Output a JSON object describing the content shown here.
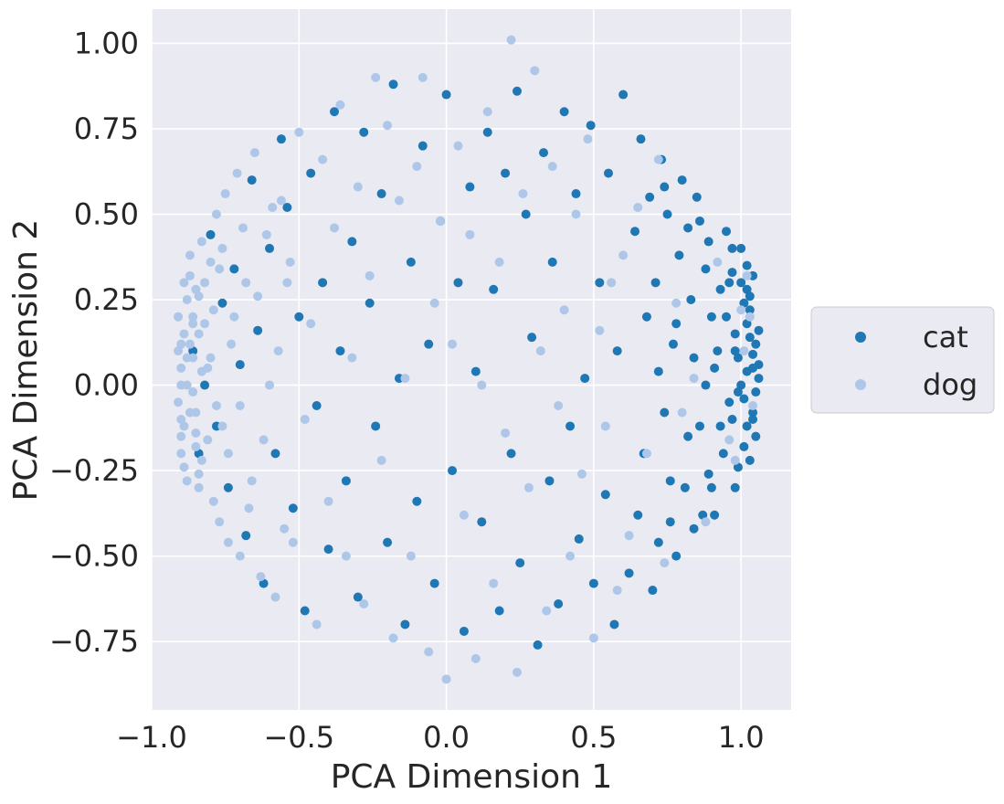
{
  "chart_data": {
    "type": "scatter",
    "title": "",
    "xlabel": "PCA Dimension 1",
    "ylabel": "PCA Dimension 2",
    "xlim": [
      -1.0,
      1.17
    ],
    "ylim": [
      -0.95,
      1.1
    ],
    "xticks": [
      -1.0,
      -0.5,
      0.0,
      0.5,
      1.0
    ],
    "xtick_labels": [
      "−1.0",
      "−0.5",
      "0.0",
      "0.5",
      "1.0"
    ],
    "yticks": [
      -0.75,
      -0.5,
      -0.25,
      0.0,
      0.25,
      0.5,
      0.75,
      1.0
    ],
    "ytick_labels": [
      "−0.75",
      "−0.50",
      "−0.25",
      "0.00",
      "0.25",
      "0.50",
      "0.75",
      "1.00"
    ],
    "grid": true,
    "legend_position": "center-right-outside",
    "series": [
      {
        "name": "cat",
        "color": "#1f77b4",
        "points": [
          [
            1.02,
            0.18
          ],
          [
            1.04,
            0.05
          ],
          [
            1.01,
            -0.04
          ],
          [
            1.03,
            0.26
          ],
          [
            1.05,
            0.12
          ],
          [
            1.02,
            -0.12
          ],
          [
            1.0,
            0.3
          ],
          [
            1.04,
            -0.08
          ],
          [
            1.06,
            0.02
          ],
          [
            0.99,
            0.08
          ],
          [
            1.03,
            0.22
          ],
          [
            1.01,
            -0.18
          ],
          [
            1.05,
            -0.02
          ],
          [
            0.98,
            0.15
          ],
          [
            1.02,
            0.35
          ],
          [
            1.04,
            0.09
          ],
          [
            0.97,
            -0.1
          ],
          [
            1.03,
            -0.22
          ],
          [
            1.06,
            0.16
          ],
          [
            1.0,
            0.0
          ],
          [
            0.95,
            0.2
          ],
          [
            0.96,
            -0.05
          ],
          [
            0.93,
            0.28
          ],
          [
            0.94,
            -0.2
          ],
          [
            0.92,
            0.1
          ],
          [
            0.97,
            0.4
          ],
          [
            0.9,
            -0.3
          ],
          [
            0.95,
            0.45
          ],
          [
            0.91,
            0.05
          ],
          [
            0.93,
            -0.12
          ],
          [
            0.88,
            0.34
          ],
          [
            0.89,
            -0.26
          ],
          [
            0.86,
            0.48
          ],
          [
            0.87,
            -0.38
          ],
          [
            0.9,
            0.2
          ],
          [
            0.85,
            0.55
          ],
          [
            0.84,
            -0.42
          ],
          [
            0.88,
            0.0
          ],
          [
            0.83,
            0.25
          ],
          [
            0.82,
            -0.15
          ],
          [
            0.8,
            0.6
          ],
          [
            0.78,
            -0.5
          ],
          [
            0.79,
            0.38
          ],
          [
            0.77,
            0.12
          ],
          [
            0.76,
            -0.28
          ],
          [
            0.75,
            0.5
          ],
          [
            0.74,
            -0.08
          ],
          [
            0.73,
            0.66
          ],
          [
            0.72,
            -0.46
          ],
          [
            0.71,
            0.3
          ],
          [
            0.7,
            -0.6
          ],
          [
            0.69,
            0.55
          ],
          [
            0.68,
            0.2
          ],
          [
            0.67,
            -0.2
          ],
          [
            0.66,
            0.72
          ],
          [
            0.65,
            -0.38
          ],
          [
            0.64,
            0.45
          ],
          [
            0.62,
            -0.55
          ],
          [
            0.6,
            0.85
          ],
          [
            0.58,
            0.1
          ],
          [
            0.57,
            -0.7
          ],
          [
            0.55,
            0.62
          ],
          [
            0.54,
            -0.32
          ],
          [
            0.52,
            0.3
          ],
          [
            0.5,
            -0.58
          ],
          [
            0.49,
            0.76
          ],
          [
            0.47,
            0.02
          ],
          [
            0.45,
            -0.45
          ],
          [
            0.44,
            0.56
          ],
          [
            0.42,
            -0.12
          ],
          [
            0.4,
            0.8
          ],
          [
            0.38,
            -0.64
          ],
          [
            0.36,
            0.36
          ],
          [
            0.35,
            -0.28
          ],
          [
            0.33,
            0.68
          ],
          [
            0.31,
            -0.76
          ],
          [
            0.29,
            0.14
          ],
          [
            0.27,
            0.5
          ],
          [
            0.25,
            -0.52
          ],
          [
            0.24,
            0.86
          ],
          [
            0.22,
            -0.2
          ],
          [
            0.2,
            0.62
          ],
          [
            0.18,
            -0.66
          ],
          [
            0.16,
            0.28
          ],
          [
            0.14,
            0.74
          ],
          [
            0.12,
            -0.4
          ],
          [
            0.1,
            0.04
          ],
          [
            0.08,
            0.58
          ],
          [
            0.06,
            -0.72
          ],
          [
            0.04,
            0.3
          ],
          [
            0.02,
            -0.25
          ],
          [
            0.0,
            0.85
          ],
          [
            -0.02,
            0.48
          ],
          [
            -0.04,
            -0.58
          ],
          [
            -0.06,
            0.12
          ],
          [
            -0.08,
            0.7
          ],
          [
            -0.1,
            -0.34
          ],
          [
            -0.12,
            0.36
          ],
          [
            -0.14,
            -0.7
          ],
          [
            -0.16,
            0.02
          ],
          [
            -0.18,
            0.88
          ],
          [
            -0.2,
            -0.46
          ],
          [
            -0.22,
            0.56
          ],
          [
            -0.24,
            -0.12
          ],
          [
            -0.26,
            0.24
          ],
          [
            -0.28,
            0.74
          ],
          [
            -0.3,
            -0.62
          ],
          [
            -0.32,
            0.42
          ],
          [
            -0.34,
            -0.28
          ],
          [
            -0.36,
            0.1
          ],
          [
            -0.38,
            0.8
          ],
          [
            -0.4,
            -0.48
          ],
          [
            -0.42,
            0.3
          ],
          [
            -0.44,
            -0.06
          ],
          [
            -0.46,
            0.62
          ],
          [
            -0.48,
            -0.66
          ],
          [
            -0.5,
            0.2
          ],
          [
            -0.52,
            -0.36
          ],
          [
            -0.54,
            0.52
          ],
          [
            -0.56,
            0.72
          ],
          [
            -0.58,
            -0.2
          ],
          [
            -0.6,
            0.4
          ],
          [
            -0.62,
            -0.58
          ],
          [
            -0.64,
            0.16
          ],
          [
            -0.66,
            0.6
          ],
          [
            -0.68,
            -0.44
          ],
          [
            -0.7,
            0.06
          ],
          [
            -0.72,
            0.34
          ],
          [
            -0.74,
            -0.3
          ],
          [
            -0.76,
            0.24
          ],
          [
            -0.78,
            -0.12
          ],
          [
            -0.8,
            0.44
          ],
          [
            -0.82,
            0.0
          ],
          [
            -0.84,
            -0.2
          ],
          [
            -0.86,
            0.1
          ],
          [
            0.98,
            -0.3
          ],
          [
            0.97,
            0.33
          ],
          [
            0.99,
            -0.24
          ],
          [
            1.0,
            0.4
          ],
          [
            1.02,
            0.28
          ],
          [
            0.91,
            -0.38
          ],
          [
            0.89,
            0.42
          ],
          [
            0.86,
            -0.12
          ],
          [
            0.84,
            0.08
          ],
          [
            0.82,
            0.46
          ],
          [
            0.81,
            -0.3
          ],
          [
            0.78,
            0.18
          ],
          [
            0.76,
            -0.4
          ],
          [
            0.74,
            0.58
          ],
          [
            0.72,
            0.04
          ],
          [
            1.04,
            0.32
          ],
          [
            1.05,
            -0.15
          ],
          [
            1.03,
            0.14
          ],
          [
            1.01,
            0.24
          ],
          [
            0.99,
            -0.02
          ],
          [
            1.06,
            0.06
          ],
          [
            1.04,
            -0.1
          ],
          [
            1.02,
            0.04
          ],
          [
            0.98,
            0.1
          ],
          [
            0.96,
            0.3
          ]
        ]
      },
      {
        "name": "dog",
        "color": "#aec7e8",
        "points": [
          [
            -0.9,
            0.05
          ],
          [
            -0.89,
            0.15
          ],
          [
            -0.91,
            -0.05
          ],
          [
            -0.88,
            0.25
          ],
          [
            -0.9,
            -0.15
          ],
          [
            -0.87,
            0.32
          ],
          [
            -0.89,
            -0.24
          ],
          [
            -0.91,
            0.1
          ],
          [
            -0.9,
            -0.1
          ],
          [
            -0.88,
            0.0
          ],
          [
            -0.86,
            0.2
          ],
          [
            -0.85,
            -0.18
          ],
          [
            -0.87,
            0.38
          ],
          [
            -0.84,
            -0.3
          ],
          [
            -0.86,
            0.08
          ],
          [
            -0.83,
            0.42
          ],
          [
            -0.85,
            -0.08
          ],
          [
            -0.82,
            0.3
          ],
          [
            -0.84,
            0.15
          ],
          [
            -0.83,
            -0.22
          ],
          [
            -0.8,
            0.36
          ],
          [
            -0.79,
            -0.34
          ],
          [
            -0.81,
            0.05
          ],
          [
            -0.78,
            0.5
          ],
          [
            -0.77,
            -0.4
          ],
          [
            -0.79,
            0.22
          ],
          [
            -0.76,
            -0.12
          ],
          [
            -0.75,
            0.56
          ],
          [
            -0.74,
            -0.46
          ],
          [
            -0.73,
            0.12
          ],
          [
            -0.71,
            0.62
          ],
          [
            -0.7,
            -0.5
          ],
          [
            -0.68,
            0.3
          ],
          [
            -0.66,
            -0.28
          ],
          [
            -0.65,
            0.68
          ],
          [
            -0.63,
            -0.56
          ],
          [
            -0.61,
            0.44
          ],
          [
            -0.6,
            0.0
          ],
          [
            -0.58,
            -0.62
          ],
          [
            -0.56,
            0.54
          ],
          [
            -0.54,
            0.3
          ],
          [
            -0.52,
            -0.46
          ],
          [
            -0.5,
            0.74
          ],
          [
            -0.48,
            -0.1
          ],
          [
            -0.46,
            0.18
          ],
          [
            -0.44,
            -0.7
          ],
          [
            -0.42,
            0.66
          ],
          [
            -0.4,
            -0.34
          ],
          [
            -0.38,
            0.46
          ],
          [
            -0.36,
            0.82
          ],
          [
            -0.34,
            -0.5
          ],
          [
            -0.32,
            0.08
          ],
          [
            -0.3,
            0.58
          ],
          [
            -0.28,
            -0.64
          ],
          [
            -0.26,
            0.32
          ],
          [
            -0.24,
            0.9
          ],
          [
            -0.22,
            -0.22
          ],
          [
            -0.2,
            0.76
          ],
          [
            -0.18,
            -0.74
          ],
          [
            -0.16,
            0.54
          ],
          [
            -0.14,
            0.02
          ],
          [
            -0.12,
            -0.5
          ],
          [
            -0.1,
            0.64
          ],
          [
            -0.08,
            0.9
          ],
          [
            -0.06,
            -0.78
          ],
          [
            -0.04,
            0.24
          ],
          [
            -0.02,
            0.48
          ],
          [
            0.0,
            -0.86
          ],
          [
            0.02,
            0.12
          ],
          [
            0.04,
            0.7
          ],
          [
            0.06,
            -0.38
          ],
          [
            0.08,
            0.44
          ],
          [
            0.1,
            -0.8
          ],
          [
            0.12,
            0.0
          ],
          [
            0.14,
            0.8
          ],
          [
            0.16,
            -0.58
          ],
          [
            0.18,
            0.36
          ],
          [
            0.2,
            -0.14
          ],
          [
            0.22,
            1.01
          ],
          [
            0.24,
            -0.84
          ],
          [
            0.26,
            0.56
          ],
          [
            0.28,
            -0.3
          ],
          [
            0.3,
            0.92
          ],
          [
            0.32,
            0.1
          ],
          [
            0.34,
            -0.66
          ],
          [
            0.36,
            0.64
          ],
          [
            0.38,
            -0.06
          ],
          [
            0.4,
            0.22
          ],
          [
            0.42,
            -0.5
          ],
          [
            0.44,
            0.5
          ],
          [
            0.46,
            -0.26
          ],
          [
            0.48,
            0.72
          ],
          [
            0.5,
            -0.74
          ],
          [
            0.52,
            0.16
          ],
          [
            0.54,
            -0.12
          ],
          [
            0.56,
            0.3
          ],
          [
            0.58,
            -0.6
          ],
          [
            0.6,
            0.38
          ],
          [
            0.62,
            -0.44
          ],
          [
            0.65,
            0.52
          ],
          [
            0.68,
            -0.2
          ],
          [
            0.72,
            0.66
          ],
          [
            0.74,
            -0.52
          ],
          [
            0.78,
            0.24
          ],
          [
            0.8,
            -0.08
          ],
          [
            0.84,
            0.02
          ],
          [
            0.88,
            -0.4
          ],
          [
            0.92,
            0.36
          ],
          [
            0.96,
            -0.16
          ],
          [
            1.0,
            0.22
          ],
          [
            1.02,
            0.32
          ],
          [
            1.04,
            -0.06
          ],
          [
            1.01,
            0.1
          ],
          [
            0.98,
            -0.22
          ],
          [
            1.03,
            0.2
          ],
          [
            -0.89,
            0.3
          ],
          [
            -0.9,
            -0.2
          ],
          [
            -0.91,
            0.2
          ],
          [
            -0.88,
            -0.28
          ],
          [
            -0.87,
            0.12
          ],
          [
            -0.86,
            -0.02
          ],
          [
            -0.85,
            0.28
          ],
          [
            -0.84,
            -0.26
          ],
          [
            -0.82,
            0.18
          ],
          [
            -0.81,
            -0.16
          ],
          [
            -0.8,
            0.08
          ],
          [
            -0.78,
            -0.06
          ],
          [
            -0.77,
            0.34
          ],
          [
            -0.76,
            0.4
          ],
          [
            -0.74,
            -0.2
          ],
          [
            -0.72,
            0.2
          ],
          [
            -0.7,
            -0.06
          ],
          [
            -0.69,
            0.46
          ],
          [
            -0.67,
            -0.36
          ],
          [
            -0.64,
            0.26
          ],
          [
            -0.62,
            -0.16
          ],
          [
            -0.59,
            0.52
          ],
          [
            -0.57,
            0.1
          ],
          [
            -0.55,
            -0.42
          ],
          [
            -0.53,
            0.36
          ],
          [
            -0.9,
            0.0
          ],
          [
            -0.9,
            0.12
          ],
          [
            -0.89,
            -0.12
          ],
          [
            -0.91,
            0.2
          ],
          [
            -0.88,
            0.08
          ],
          [
            -0.87,
            -0.08
          ],
          [
            -0.86,
            0.18
          ],
          [
            -0.85,
            -0.14
          ],
          [
            -0.84,
            0.26
          ],
          [
            -0.83,
            0.04
          ]
        ]
      }
    ]
  }
}
